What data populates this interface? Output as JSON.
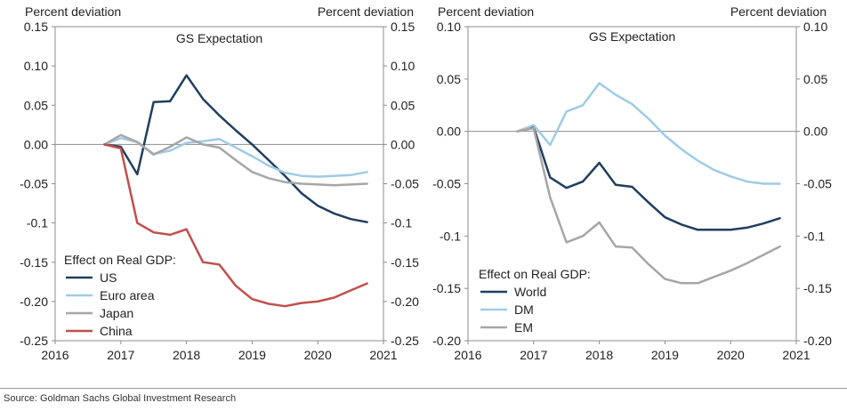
{
  "source": "Source: Goldman Sachs Global Investment Research",
  "chart_data": [
    {
      "type": "line",
      "title": "GS Expectation",
      "ylabel_left": "Percent deviation",
      "ylabel_right": "Percent deviation",
      "xlim": [
        2016,
        2021
      ],
      "ylim": [
        -0.25,
        0.15
      ],
      "xticks": [
        2016,
        2017,
        2018,
        2019,
        2020,
        2021
      ],
      "yticks": [
        0.15,
        0.1,
        0.05,
        0.0,
        -0.05,
        -0.1,
        -0.15,
        -0.2,
        -0.25
      ],
      "ytick_labels": [
        "0.15",
        "0.10",
        "0.05",
        "0.00",
        "-0.05",
        "-0.1",
        "-0.15",
        "-0.20",
        "-0.25"
      ],
      "grid": false,
      "legend_title": "Effect on Real GDP:",
      "legend_position": "bottom-left",
      "x": [
        2016.75,
        2017.0,
        2017.25,
        2017.5,
        2017.75,
        2018.0,
        2018.25,
        2018.5,
        2018.75,
        2019.0,
        2019.25,
        2019.5,
        2019.75,
        2020.0,
        2020.25,
        2020.5,
        2020.75
      ],
      "series": [
        {
          "name": "US",
          "color": "#1f3f5f",
          "values": [
            0.0,
            -0.003,
            -0.038,
            0.054,
            0.055,
            0.088,
            0.058,
            0.037,
            0.018,
            0.0,
            -0.02,
            -0.04,
            -0.062,
            -0.078,
            -0.088,
            -0.095,
            -0.099
          ]
        },
        {
          "name": "Euro area",
          "color": "#9fcbe6",
          "values": [
            0.0,
            0.008,
            0.003,
            -0.012,
            -0.008,
            0.002,
            0.004,
            0.007,
            -0.004,
            -0.015,
            -0.027,
            -0.036,
            -0.04,
            -0.041,
            -0.04,
            -0.039,
            -0.035
          ]
        },
        {
          "name": "Japan",
          "color": "#a6a6a6",
          "values": [
            0.0,
            0.012,
            0.003,
            -0.013,
            -0.003,
            0.009,
            0.0,
            -0.004,
            -0.02,
            -0.035,
            -0.043,
            -0.048,
            -0.05,
            -0.051,
            -0.052,
            -0.051,
            -0.05
          ]
        },
        {
          "name": "China",
          "color": "#c0504d",
          "values": [
            0.0,
            -0.005,
            -0.1,
            -0.112,
            -0.115,
            -0.108,
            -0.15,
            -0.153,
            -0.18,
            -0.197,
            -0.203,
            -0.206,
            -0.202,
            -0.2,
            -0.195,
            -0.186,
            -0.177
          ]
        }
      ]
    },
    {
      "type": "line",
      "title": "GS Expectation",
      "ylabel_left": "Percent deviation",
      "ylabel_right": "Percent deviation",
      "xlim": [
        2016,
        2021
      ],
      "ylim": [
        -0.2,
        0.1
      ],
      "xticks": [
        2016,
        2017,
        2018,
        2019,
        2020,
        2021
      ],
      "yticks": [
        0.1,
        0.05,
        0.0,
        -0.05,
        -0.1,
        -0.15,
        -0.2
      ],
      "ytick_labels": [
        "0.10",
        "0.05",
        "0.00",
        "-0.05",
        "-0.1",
        "-0.15",
        "-0.20"
      ],
      "grid": false,
      "legend_title": "Effect on Real GDP:",
      "legend_position": "bottom-left",
      "x": [
        2016.75,
        2017.0,
        2017.25,
        2017.5,
        2017.75,
        2018.0,
        2018.25,
        2018.5,
        2018.75,
        2019.0,
        2019.25,
        2019.5,
        2019.75,
        2020.0,
        2020.25,
        2020.5,
        2020.75
      ],
      "series": [
        {
          "name": "World",
          "color": "#1f3f5f",
          "values": [
            0.0,
            0.004,
            -0.044,
            -0.054,
            -0.048,
            -0.03,
            -0.051,
            -0.053,
            -0.068,
            -0.082,
            -0.089,
            -0.094,
            -0.094,
            -0.094,
            -0.092,
            -0.088,
            -0.083
          ]
        },
        {
          "name": "DM",
          "color": "#9fcbe6",
          "values": [
            0.0,
            0.006,
            -0.013,
            0.019,
            0.025,
            0.046,
            0.035,
            0.026,
            0.012,
            -0.004,
            -0.017,
            -0.028,
            -0.037,
            -0.043,
            -0.048,
            -0.05,
            -0.05
          ]
        },
        {
          "name": "EM",
          "color": "#a6a6a6",
          "values": [
            0.0,
            0.003,
            -0.063,
            -0.106,
            -0.1,
            -0.087,
            -0.11,
            -0.111,
            -0.127,
            -0.141,
            -0.145,
            -0.145,
            -0.139,
            -0.133,
            -0.126,
            -0.118,
            -0.11
          ]
        }
      ]
    }
  ]
}
